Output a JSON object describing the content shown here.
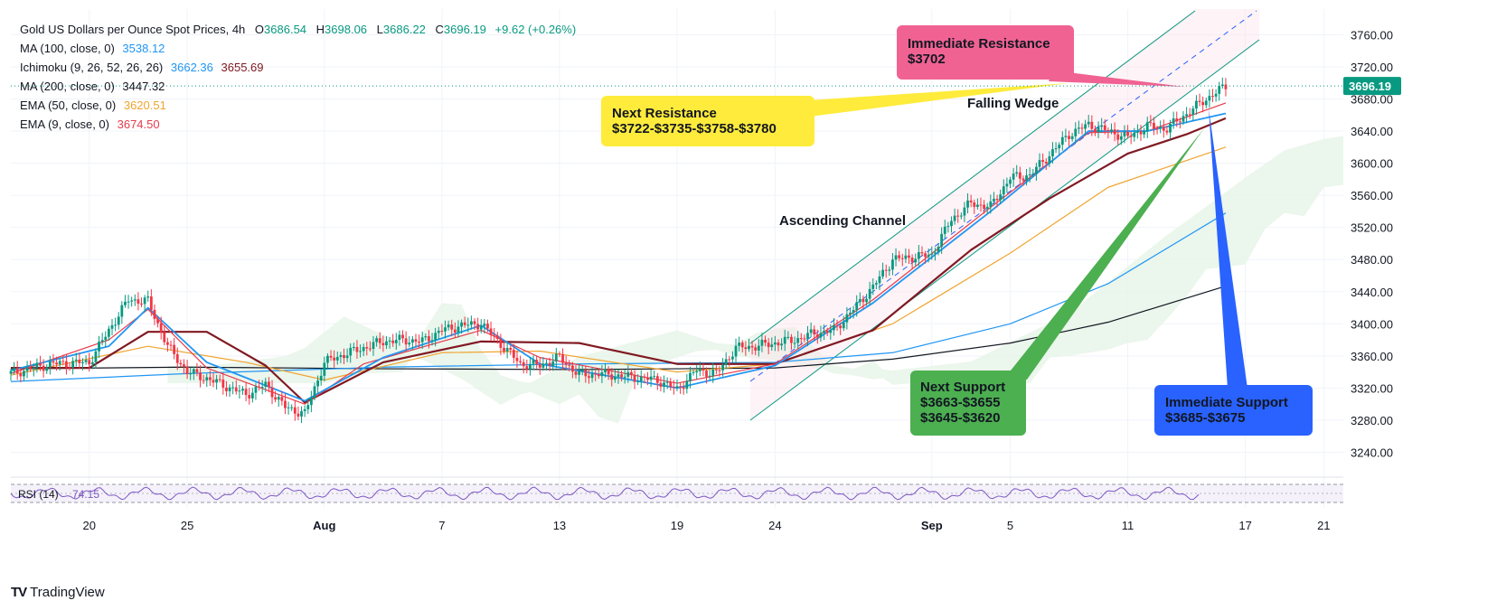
{
  "header": {
    "symbol_title": "Gold US Dollars per Ounce Spot Prices, 4h",
    "ohlc": {
      "o_label": "O",
      "o": "3686.54",
      "h_label": "H",
      "h": "3698.06",
      "l_label": "L",
      "l": "3686.22",
      "c_label": "C",
      "c": "3696.19",
      "change": "+9.62 (+0.26%)"
    },
    "indicators": [
      {
        "label": "MA (100, close, 0)",
        "value": "3538.12",
        "color": "#2196f3"
      },
      {
        "label": "Ichimoku (9, 26, 52, 26, 26)",
        "value": "3662.36",
        "value2": "3655.69",
        "color": "#2196f3",
        "color2": "#801922"
      },
      {
        "label": "MA (200, close, 0)",
        "value": "3447.32",
        "color": "#131722"
      },
      {
        "label": "EMA (50, close, 0)",
        "value": "3620.51",
        "color": "#f0a430"
      },
      {
        "label": "EMA (9, close, 0)",
        "value": "3674.50",
        "color": "#e53b4b"
      }
    ]
  },
  "price_tag": "3696.19",
  "rsi_label": "RSI (14)",
  "rsi_value": "74.15",
  "footer": {
    "brand_mark": "TV",
    "brand": "TradingView"
  },
  "annotations": {
    "immediate_resistance": {
      "title": "Immediate Resistance",
      "value": "$3702",
      "color": "#f06292"
    },
    "next_resistance": {
      "title": "Next Resistance",
      "value": "$3722-$3735-$3758-$3780",
      "color": "#ffeb3b"
    },
    "next_support": {
      "title": "Next Support",
      "lines": [
        "$3663-$3655",
        "$3645-$3620"
      ],
      "color": "#4caf50"
    },
    "immediate_support": {
      "title": "Immediate Support",
      "value": "$3685-$3675",
      "color": "#2962ff"
    },
    "falling_wedge": "Falling Wedge",
    "ascending_channel": "Ascending Channel"
  },
  "colors": {
    "up": "#089981",
    "down": "#f23645",
    "ma100": "#2196f3",
    "ma200": "#131722",
    "ema50": "#f0a430",
    "ema9": "#e53b4b",
    "tenkan": "#2196f3",
    "kijun": "#801922",
    "channel": "#089981"
  },
  "chart_data": {
    "type": "line",
    "title": "Gold US Dollars per Ounce Spot Prices, 4h",
    "y_ticks": [
      3240,
      3280,
      3320,
      3360,
      3400,
      3440,
      3480,
      3520,
      3560,
      3600,
      3640,
      3680,
      3720,
      3760
    ],
    "ylim": [
      3218,
      3792
    ],
    "x_ticks": [
      {
        "label": "20",
        "date": "2025-07-20"
      },
      {
        "label": "25",
        "date": "2025-07-25"
      },
      {
        "label": "Aug",
        "date": "2025-08-01"
      },
      {
        "label": "7",
        "date": "2025-08-07"
      },
      {
        "label": "13",
        "date": "2025-08-13"
      },
      {
        "label": "19",
        "date": "2025-08-19"
      },
      {
        "label": "24",
        "date": "2025-08-24"
      },
      {
        "label": "Sep",
        "date": "2025-09-01"
      },
      {
        "label": "5",
        "date": "2025-09-05"
      },
      {
        "label": "11",
        "date": "2025-09-11"
      },
      {
        "label": "17",
        "date": "2025-09-17"
      },
      {
        "label": "21",
        "date": "2025-09-21"
      }
    ],
    "xlim": [
      "2025-07-16",
      "2025-09-22"
    ],
    "series": [
      {
        "name": "Price",
        "values": [
          [
            "2025-07-16",
            3338
          ],
          [
            "2025-07-18",
            3350
          ],
          [
            "2025-07-20",
            3352
          ],
          [
            "2025-07-21",
            3392
          ],
          [
            "2025-07-22",
            3430
          ],
          [
            "2025-07-23",
            3428
          ],
          [
            "2025-07-24",
            3372
          ],
          [
            "2025-07-25",
            3340
          ],
          [
            "2025-07-26",
            3332
          ],
          [
            "2025-07-28",
            3312
          ],
          [
            "2025-07-29",
            3324
          ],
          [
            "2025-07-30",
            3296
          ],
          [
            "2025-07-31",
            3288
          ],
          [
            "2025-08-01",
            3352
          ],
          [
            "2025-08-02",
            3362
          ],
          [
            "2025-08-04",
            3378
          ],
          [
            "2025-08-05",
            3380
          ],
          [
            "2025-08-06",
            3378
          ],
          [
            "2025-08-07",
            3392
          ],
          [
            "2025-08-08",
            3398
          ],
          [
            "2025-08-09",
            3400
          ],
          [
            "2025-08-11",
            3350
          ],
          [
            "2025-08-12",
            3348
          ],
          [
            "2025-08-13",
            3358
          ],
          [
            "2025-08-14",
            3336
          ],
          [
            "2025-08-15",
            3338
          ],
          [
            "2025-08-18",
            3330
          ],
          [
            "2025-08-19",
            3318
          ],
          [
            "2025-08-20",
            3342
          ],
          [
            "2025-08-21",
            3338
          ],
          [
            "2025-08-22",
            3370
          ],
          [
            "2025-08-23",
            3372
          ],
          [
            "2025-08-25",
            3380
          ],
          [
            "2025-08-26",
            3388
          ],
          [
            "2025-08-27",
            3392
          ],
          [
            "2025-08-28",
            3418
          ],
          [
            "2025-08-29",
            3446
          ],
          [
            "2025-08-30",
            3480
          ],
          [
            "2025-09-01",
            3486
          ],
          [
            "2025-09-02",
            3530
          ],
          [
            "2025-09-03",
            3550
          ],
          [
            "2025-09-04",
            3546
          ],
          [
            "2025-09-05",
            3582
          ],
          [
            "2025-09-06",
            3585
          ],
          [
            "2025-09-08",
            3636
          ],
          [
            "2025-09-09",
            3648
          ],
          [
            "2025-09-10",
            3640
          ],
          [
            "2025-09-11",
            3632
          ],
          [
            "2025-09-12",
            3646
          ],
          [
            "2025-09-13",
            3643
          ],
          [
            "2025-09-15",
            3680
          ],
          [
            "2025-09-16",
            3696
          ]
        ]
      },
      {
        "name": "MA (100, close, 0)",
        "values": [
          [
            "2025-07-16",
            3328
          ],
          [
            "2025-07-25",
            3338
          ],
          [
            "2025-08-04",
            3346
          ],
          [
            "2025-08-14",
            3350
          ],
          [
            "2025-08-24",
            3352
          ],
          [
            "2025-08-30",
            3364
          ],
          [
            "2025-09-05",
            3400
          ],
          [
            "2025-09-10",
            3450
          ],
          [
            "2025-09-16",
            3538
          ]
        ]
      },
      {
        "name": "MA (200, close, 0)",
        "values": [
          [
            "2025-07-16",
            3344
          ],
          [
            "2025-07-25",
            3346
          ],
          [
            "2025-08-04",
            3344
          ],
          [
            "2025-08-14",
            3343
          ],
          [
            "2025-08-24",
            3345
          ],
          [
            "2025-08-30",
            3356
          ],
          [
            "2025-09-05",
            3376
          ],
          [
            "2025-09-10",
            3402
          ],
          [
            "2025-09-16",
            3447
          ]
        ]
      },
      {
        "name": "EMA (50, close, 0)",
        "values": [
          [
            "2025-07-16",
            3336
          ],
          [
            "2025-07-23",
            3372
          ],
          [
            "2025-07-28",
            3352
          ],
          [
            "2025-08-01",
            3330
          ],
          [
            "2025-08-07",
            3364
          ],
          [
            "2025-08-12",
            3366
          ],
          [
            "2025-08-19",
            3340
          ],
          [
            "2025-08-24",
            3350
          ],
          [
            "2025-08-30",
            3400
          ],
          [
            "2025-09-05",
            3488
          ],
          [
            "2025-09-10",
            3570
          ],
          [
            "2025-09-16",
            3620
          ]
        ]
      },
      {
        "name": "EMA (9, close, 0)",
        "values": [
          [
            "2025-07-16",
            3338
          ],
          [
            "2025-07-21",
            3380
          ],
          [
            "2025-07-23",
            3418
          ],
          [
            "2025-07-26",
            3345
          ],
          [
            "2025-07-31",
            3300
          ],
          [
            "2025-08-03",
            3350
          ],
          [
            "2025-08-09",
            3392
          ],
          [
            "2025-08-12",
            3358
          ],
          [
            "2025-08-19",
            3326
          ],
          [
            "2025-08-24",
            3350
          ],
          [
            "2025-08-29",
            3430
          ],
          [
            "2025-09-04",
            3545
          ],
          [
            "2025-09-09",
            3638
          ],
          [
            "2025-09-12",
            3640
          ],
          [
            "2025-09-16",
            3675
          ]
        ]
      },
      {
        "name": "Ichimoku Conversion",
        "values": [
          [
            "2025-07-16",
            3342
          ],
          [
            "2025-07-21",
            3372
          ],
          [
            "2025-07-23",
            3420
          ],
          [
            "2025-07-26",
            3352
          ],
          [
            "2025-07-31",
            3304
          ],
          [
            "2025-08-04",
            3358
          ],
          [
            "2025-08-09",
            3398
          ],
          [
            "2025-08-12",
            3350
          ],
          [
            "2025-08-19",
            3320
          ],
          [
            "2025-08-24",
            3348
          ],
          [
            "2025-08-29",
            3426
          ],
          [
            "2025-09-04",
            3540
          ],
          [
            "2025-09-09",
            3640
          ],
          [
            "2025-09-12",
            3640
          ],
          [
            "2025-09-16",
            3662
          ]
        ]
      },
      {
        "name": "Ichimoku Base",
        "values": [
          [
            "2025-07-16",
            3345
          ],
          [
            "2025-07-20",
            3345
          ],
          [
            "2025-07-23",
            3390
          ],
          [
            "2025-07-26",
            3390
          ],
          [
            "2025-07-29",
            3348
          ],
          [
            "2025-07-31",
            3302
          ],
          [
            "2025-08-04",
            3352
          ],
          [
            "2025-08-09",
            3378
          ],
          [
            "2025-08-14",
            3376
          ],
          [
            "2025-08-19",
            3350
          ],
          [
            "2025-08-24",
            3350
          ],
          [
            "2025-08-29",
            3392
          ],
          [
            "2025-09-03",
            3492
          ],
          [
            "2025-09-07",
            3556
          ],
          [
            "2025-09-11",
            3612
          ],
          [
            "2025-09-14",
            3636
          ],
          [
            "2025-09-16",
            3656
          ]
        ]
      }
    ]
  }
}
